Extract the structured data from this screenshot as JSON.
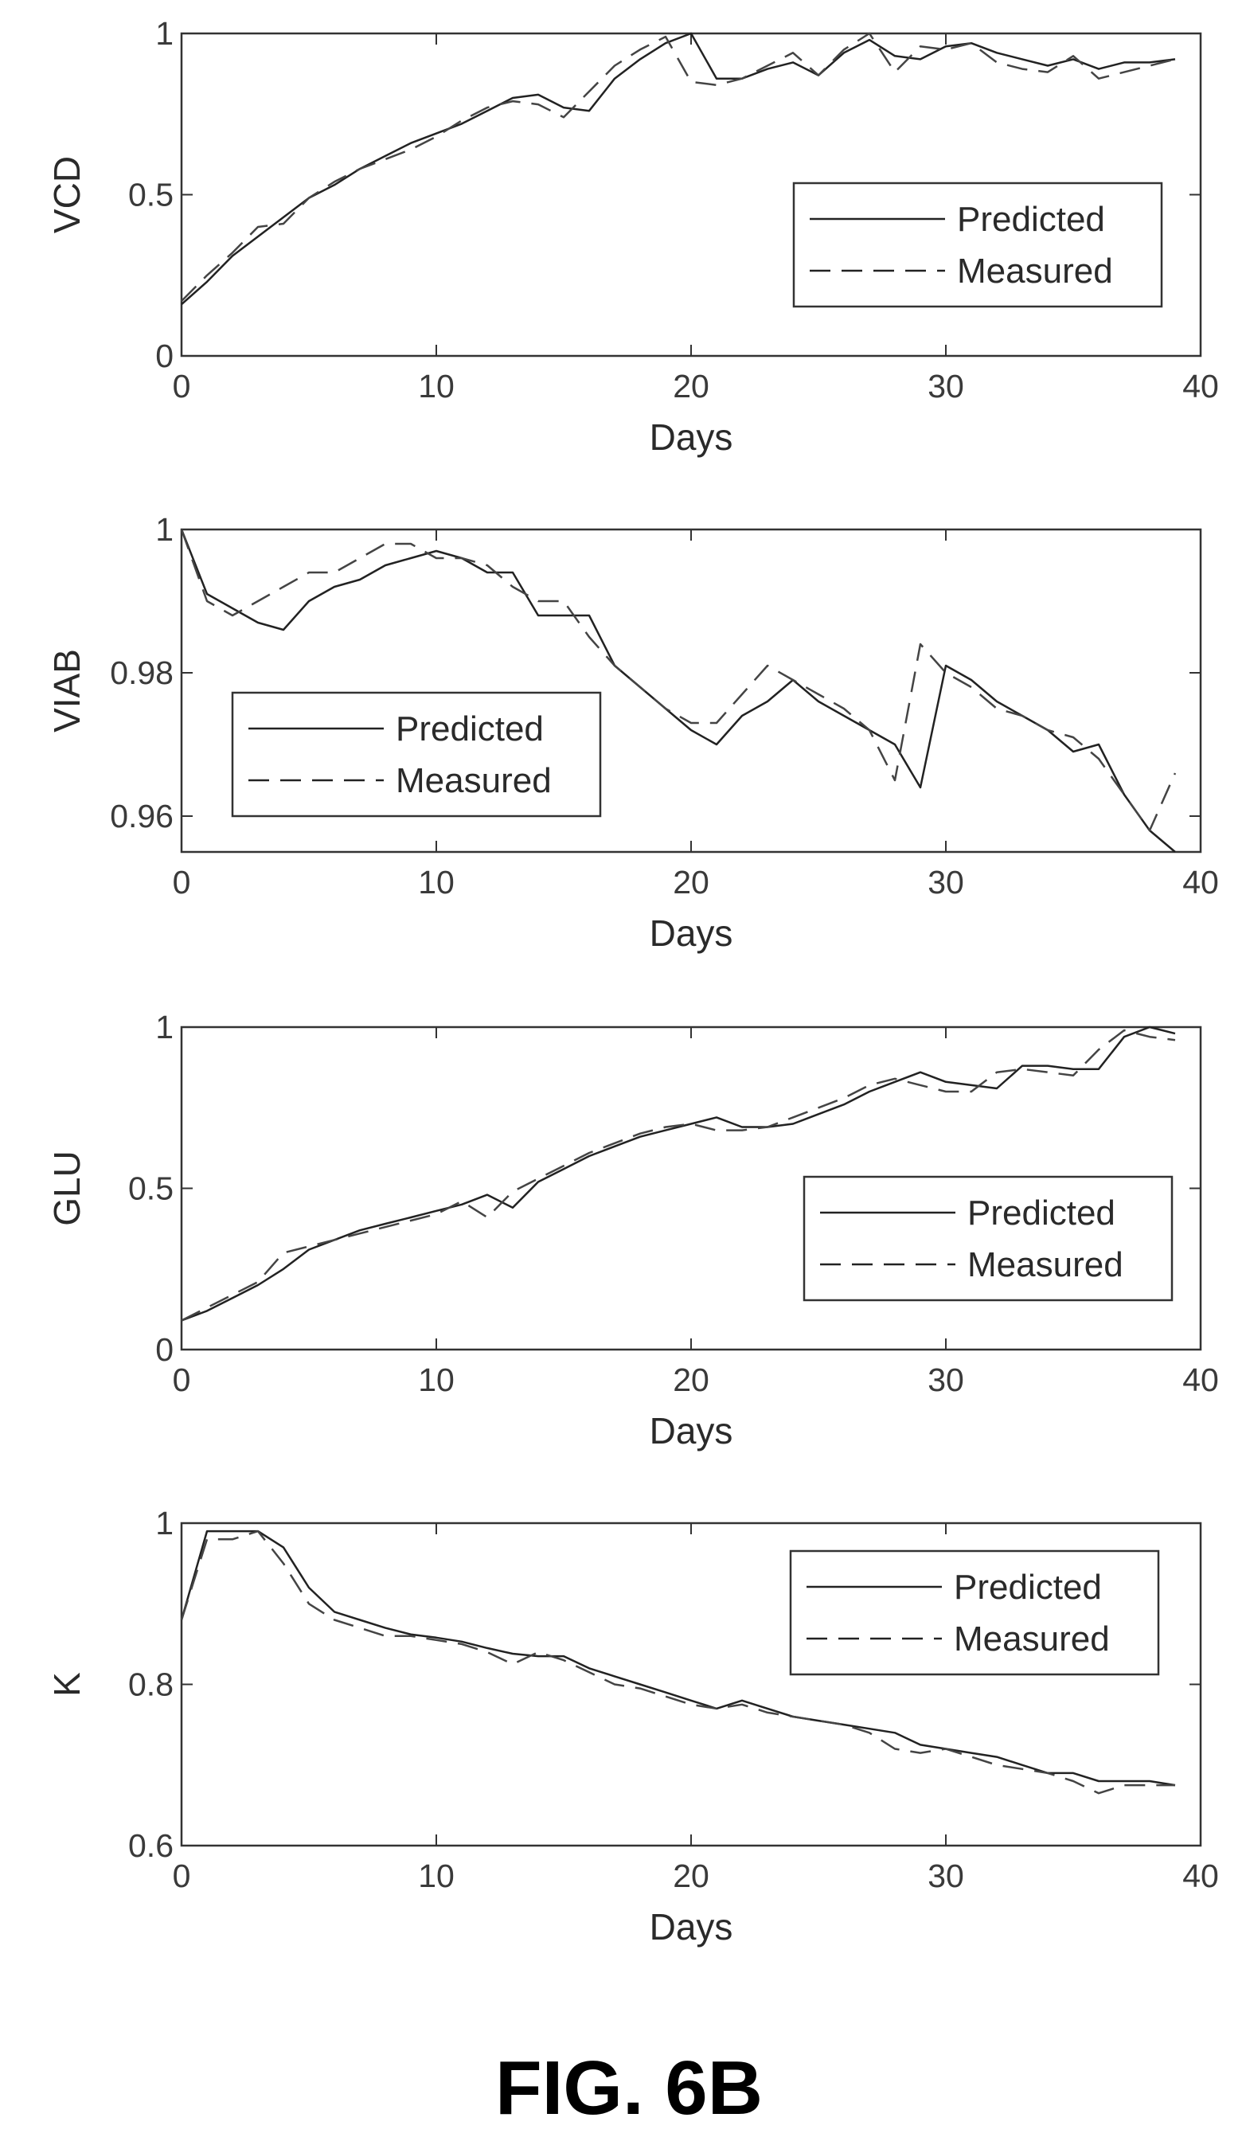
{
  "figure_caption": "FIG. 6B",
  "chart_data": [
    {
      "type": "line",
      "ylabel": "VCD",
      "xlabel": "Days",
      "xlim": [
        0,
        40
      ],
      "ylim": [
        0,
        1
      ],
      "xticks": [
        "0",
        "10",
        "20",
        "30",
        "40"
      ],
      "yticks": [
        "0",
        "0.5",
        "1"
      ],
      "legend_position": "right",
      "x": [
        0,
        1,
        2,
        3,
        4,
        5,
        6,
        7,
        8,
        9,
        10,
        11,
        12,
        13,
        14,
        15,
        16,
        17,
        18,
        19,
        20,
        21,
        22,
        23,
        24,
        25,
        26,
        27,
        28,
        29,
        30,
        31,
        32,
        33,
        34,
        35,
        36,
        37,
        38,
        39
      ],
      "series": [
        {
          "name": "Predicted",
          "style": "solid",
          "values": [
            0.16,
            0.23,
            0.31,
            0.37,
            0.43,
            0.49,
            0.53,
            0.58,
            0.62,
            0.66,
            0.69,
            0.72,
            0.76,
            0.8,
            0.81,
            0.77,
            0.76,
            0.86,
            0.92,
            0.97,
            1.0,
            0.86,
            0.86,
            0.89,
            0.91,
            0.87,
            0.94,
            0.98,
            0.93,
            0.92,
            0.96,
            0.97,
            0.94,
            0.92,
            0.9,
            0.92,
            0.89,
            0.91,
            0.91,
            0.92
          ]
        },
        {
          "name": "Measured",
          "style": "dashed",
          "values": [
            0.17,
            0.25,
            0.32,
            0.4,
            0.41,
            0.49,
            0.54,
            0.58,
            0.61,
            0.64,
            0.68,
            0.73,
            0.77,
            0.79,
            0.78,
            0.74,
            0.82,
            0.9,
            0.95,
            0.99,
            0.85,
            0.84,
            0.86,
            0.9,
            0.94,
            0.87,
            0.95,
            1.0,
            0.88,
            0.96,
            0.95,
            0.97,
            0.91,
            0.89,
            0.88,
            0.93,
            0.86,
            0.88,
            0.9,
            0.92
          ]
        }
      ]
    },
    {
      "type": "line",
      "ylabel": "VIAB",
      "xlabel": "Days",
      "xlim": [
        0,
        40
      ],
      "ylim": [
        0.955,
        1.0
      ],
      "xticks": [
        "0",
        "10",
        "20",
        "30",
        "40"
      ],
      "yticks": [
        "0.96",
        "0.98",
        "1"
      ],
      "legend_position": "left",
      "x": [
        0,
        1,
        2,
        3,
        4,
        5,
        6,
        7,
        8,
        9,
        10,
        11,
        12,
        13,
        14,
        15,
        16,
        17,
        18,
        19,
        20,
        21,
        22,
        23,
        24,
        25,
        26,
        27,
        28,
        29,
        30,
        31,
        32,
        33,
        34,
        35,
        36,
        37,
        38,
        39
      ],
      "series": [
        {
          "name": "Predicted",
          "style": "solid",
          "values": [
            1.0,
            0.991,
            0.989,
            0.987,
            0.986,
            0.99,
            0.992,
            0.993,
            0.995,
            0.996,
            0.997,
            0.996,
            0.994,
            0.994,
            0.988,
            0.988,
            0.988,
            0.981,
            0.978,
            0.975,
            0.972,
            0.97,
            0.974,
            0.976,
            0.979,
            0.976,
            0.974,
            0.972,
            0.97,
            0.964,
            0.981,
            0.979,
            0.976,
            0.974,
            0.972,
            0.969,
            0.97,
            0.963,
            0.958,
            0.955
          ]
        },
        {
          "name": "Measured",
          "style": "dashed",
          "values": [
            1.0,
            0.99,
            0.988,
            0.99,
            0.992,
            0.994,
            0.994,
            0.996,
            0.998,
            0.998,
            0.996,
            0.996,
            0.995,
            0.992,
            0.99,
            0.99,
            0.985,
            0.981,
            0.978,
            0.975,
            0.973,
            0.973,
            0.977,
            0.981,
            0.979,
            0.977,
            0.975,
            0.972,
            0.965,
            0.984,
            0.98,
            0.978,
            0.975,
            0.974,
            0.972,
            0.971,
            0.968,
            0.963,
            0.958,
            0.966
          ]
        }
      ]
    },
    {
      "type": "line",
      "ylabel": "GLU",
      "xlabel": "Days",
      "xlim": [
        0,
        40
      ],
      "ylim": [
        0,
        1
      ],
      "xticks": [
        "0",
        "10",
        "20",
        "30",
        "40"
      ],
      "yticks": [
        "0",
        "0.5",
        "1"
      ],
      "legend_position": "right",
      "x": [
        0,
        1,
        2,
        3,
        4,
        5,
        6,
        7,
        8,
        9,
        10,
        11,
        12,
        13,
        14,
        15,
        16,
        17,
        18,
        19,
        20,
        21,
        22,
        23,
        24,
        25,
        26,
        27,
        28,
        29,
        30,
        31,
        32,
        33,
        34,
        35,
        36,
        37,
        38,
        39
      ],
      "series": [
        {
          "name": "Predicted",
          "style": "solid",
          "values": [
            0.09,
            0.12,
            0.16,
            0.2,
            0.25,
            0.31,
            0.34,
            0.37,
            0.39,
            0.41,
            0.43,
            0.45,
            0.48,
            0.44,
            0.52,
            0.56,
            0.6,
            0.63,
            0.66,
            0.68,
            0.7,
            0.72,
            0.69,
            0.69,
            0.7,
            0.73,
            0.76,
            0.8,
            0.83,
            0.86,
            0.83,
            0.82,
            0.81,
            0.88,
            0.88,
            0.87,
            0.87,
            0.97,
            1.0,
            0.98
          ]
        },
        {
          "name": "Measured",
          "style": "dashed",
          "values": [
            0.09,
            0.13,
            0.17,
            0.21,
            0.3,
            0.32,
            0.34,
            0.36,
            0.38,
            0.4,
            0.42,
            0.46,
            0.41,
            0.49,
            0.53,
            0.57,
            0.61,
            0.64,
            0.67,
            0.69,
            0.7,
            0.68,
            0.68,
            0.69,
            0.72,
            0.75,
            0.78,
            0.82,
            0.84,
            0.82,
            0.8,
            0.8,
            0.86,
            0.87,
            0.86,
            0.85,
            0.93,
            0.99,
            0.97,
            0.96
          ]
        }
      ]
    },
    {
      "type": "line",
      "ylabel": "K",
      "xlabel": "Days",
      "xlim": [
        0,
        40
      ],
      "ylim": [
        0.6,
        1.0
      ],
      "xticks": [
        "0",
        "10",
        "20",
        "30",
        "40"
      ],
      "yticks": [
        "0.6",
        "0.8",
        "1"
      ],
      "legend_position": "right",
      "x": [
        0,
        1,
        2,
        3,
        4,
        5,
        6,
        7,
        8,
        9,
        10,
        11,
        12,
        13,
        14,
        15,
        16,
        17,
        18,
        19,
        20,
        21,
        22,
        23,
        24,
        25,
        26,
        27,
        28,
        29,
        30,
        31,
        32,
        33,
        34,
        35,
        36,
        37,
        38,
        39
      ],
      "series": [
        {
          "name": "Predicted",
          "style": "solid",
          "values": [
            0.88,
            0.99,
            0.99,
            0.99,
            0.97,
            0.92,
            0.89,
            0.88,
            0.87,
            0.862,
            0.858,
            0.853,
            0.845,
            0.838,
            0.835,
            0.835,
            0.82,
            0.81,
            0.8,
            0.79,
            0.78,
            0.77,
            0.78,
            0.77,
            0.76,
            0.755,
            0.75,
            0.745,
            0.74,
            0.725,
            0.72,
            0.715,
            0.71,
            0.7,
            0.69,
            0.69,
            0.68,
            0.68,
            0.68,
            0.675
          ]
        },
        {
          "name": "Measured",
          "style": "dashed",
          "values": [
            0.88,
            0.98,
            0.98,
            0.99,
            0.95,
            0.9,
            0.88,
            0.87,
            0.86,
            0.86,
            0.855,
            0.85,
            0.84,
            0.825,
            0.84,
            0.83,
            0.815,
            0.8,
            0.795,
            0.785,
            0.775,
            0.77,
            0.775,
            0.765,
            0.76,
            0.755,
            0.75,
            0.74,
            0.72,
            0.715,
            0.72,
            0.71,
            0.7,
            0.695,
            0.69,
            0.68,
            0.665,
            0.675,
            0.675,
            0.675
          ]
        }
      ]
    }
  ]
}
